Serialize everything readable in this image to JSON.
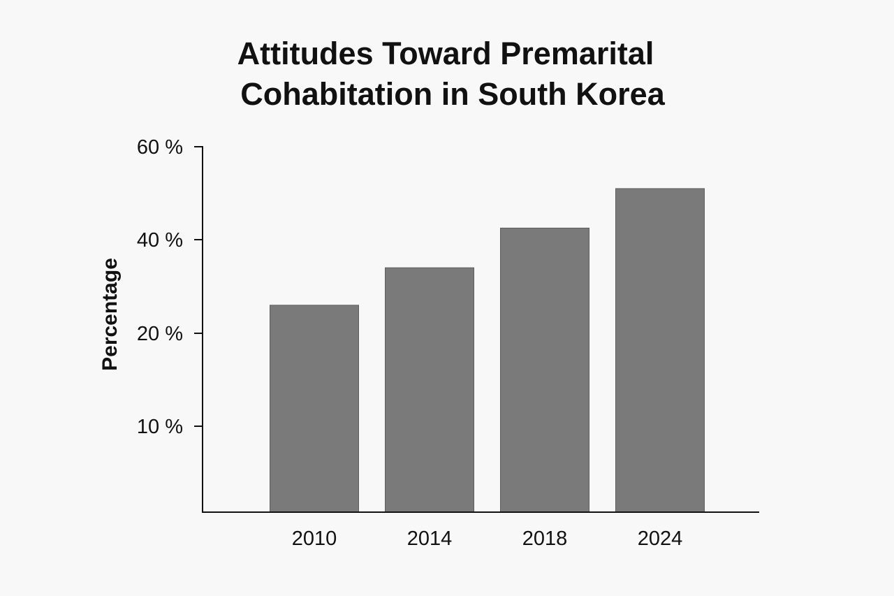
{
  "chart_data": {
    "type": "bar",
    "title_lines": [
      "Attitudes Toward Premarital",
      "Cohabitation in South Korea"
    ],
    "xlabel": "",
    "ylabel": "Percentage",
    "categories": [
      "2010",
      "2014",
      "2018",
      "2024"
    ],
    "values": [
      26,
      34,
      42.5,
      51
    ],
    "y_ticks": [
      {
        "value": 10,
        "label": "10 %"
      },
      {
        "value": 20,
        "label": "20 %"
      },
      {
        "value": 40,
        "label": "40 %"
      },
      {
        "value": 60,
        "label": "60 %"
      }
    ],
    "grid": false,
    "legend": "none",
    "colors": {
      "bar": "#7a7a7a",
      "bar_edge": "#5e5e5e",
      "axis": "#111111",
      "background": "#f8f8f8"
    }
  }
}
